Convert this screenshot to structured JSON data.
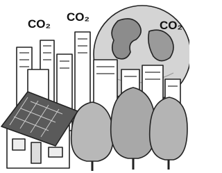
{
  "labels": [
    "CO₂",
    "CO₂",
    "CO₂"
  ]
}
